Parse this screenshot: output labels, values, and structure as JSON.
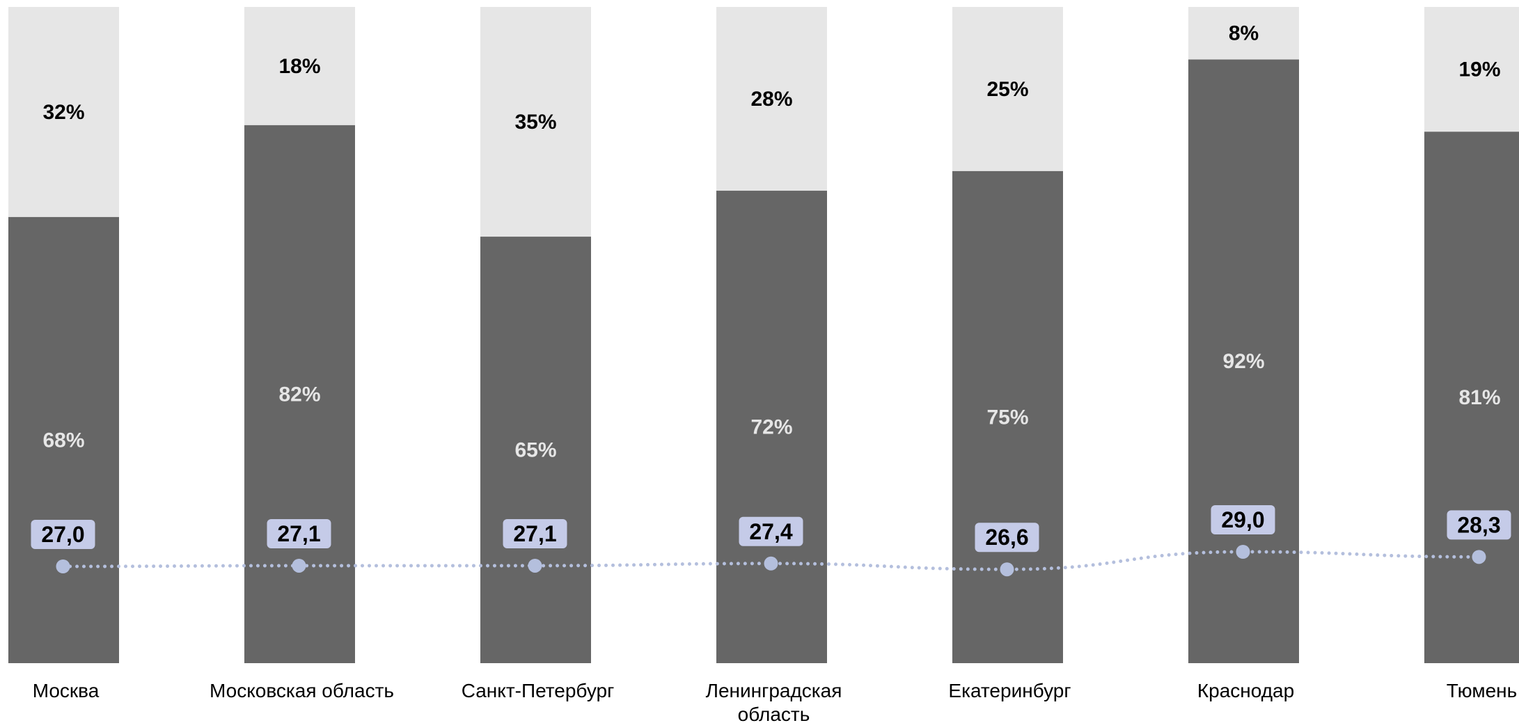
{
  "chart_data": {
    "type": "bar",
    "stacked": true,
    "normalized_percent": true,
    "categories": [
      [
        "Москва"
      ],
      [
        "Московская область"
      ],
      [
        "Санкт-Петербург"
      ],
      [
        "Ленинградская",
        "область"
      ],
      [
        "Екатеринбург"
      ],
      [
        "Краснодар"
      ],
      [
        "Тюмень"
      ]
    ],
    "series": [
      {
        "values": [
          68,
          82,
          65,
          72,
          75,
          92,
          81
        ],
        "color": "#666666",
        "label_color": "#e6e6e6"
      },
      {
        "values": [
          32,
          18,
          35,
          28,
          25,
          8,
          19
        ],
        "color": "#e6e6e6",
        "label_color": "#000000"
      }
    ],
    "value_suffix": "%",
    "line_series": {
      "values": [
        "27,0",
        "27,1",
        "27,1",
        "27,4",
        "26,6",
        "29,0",
        "28,3"
      ],
      "numeric": [
        27.0,
        27.1,
        27.1,
        27.4,
        26.6,
        29.0,
        28.3
      ],
      "color": "#b4bfdd",
      "style": "dotted",
      "markers": true,
      "label_bg": "#c5cbe8"
    },
    "ylim": [
      0,
      100
    ],
    "grid": false,
    "legend": "none"
  }
}
